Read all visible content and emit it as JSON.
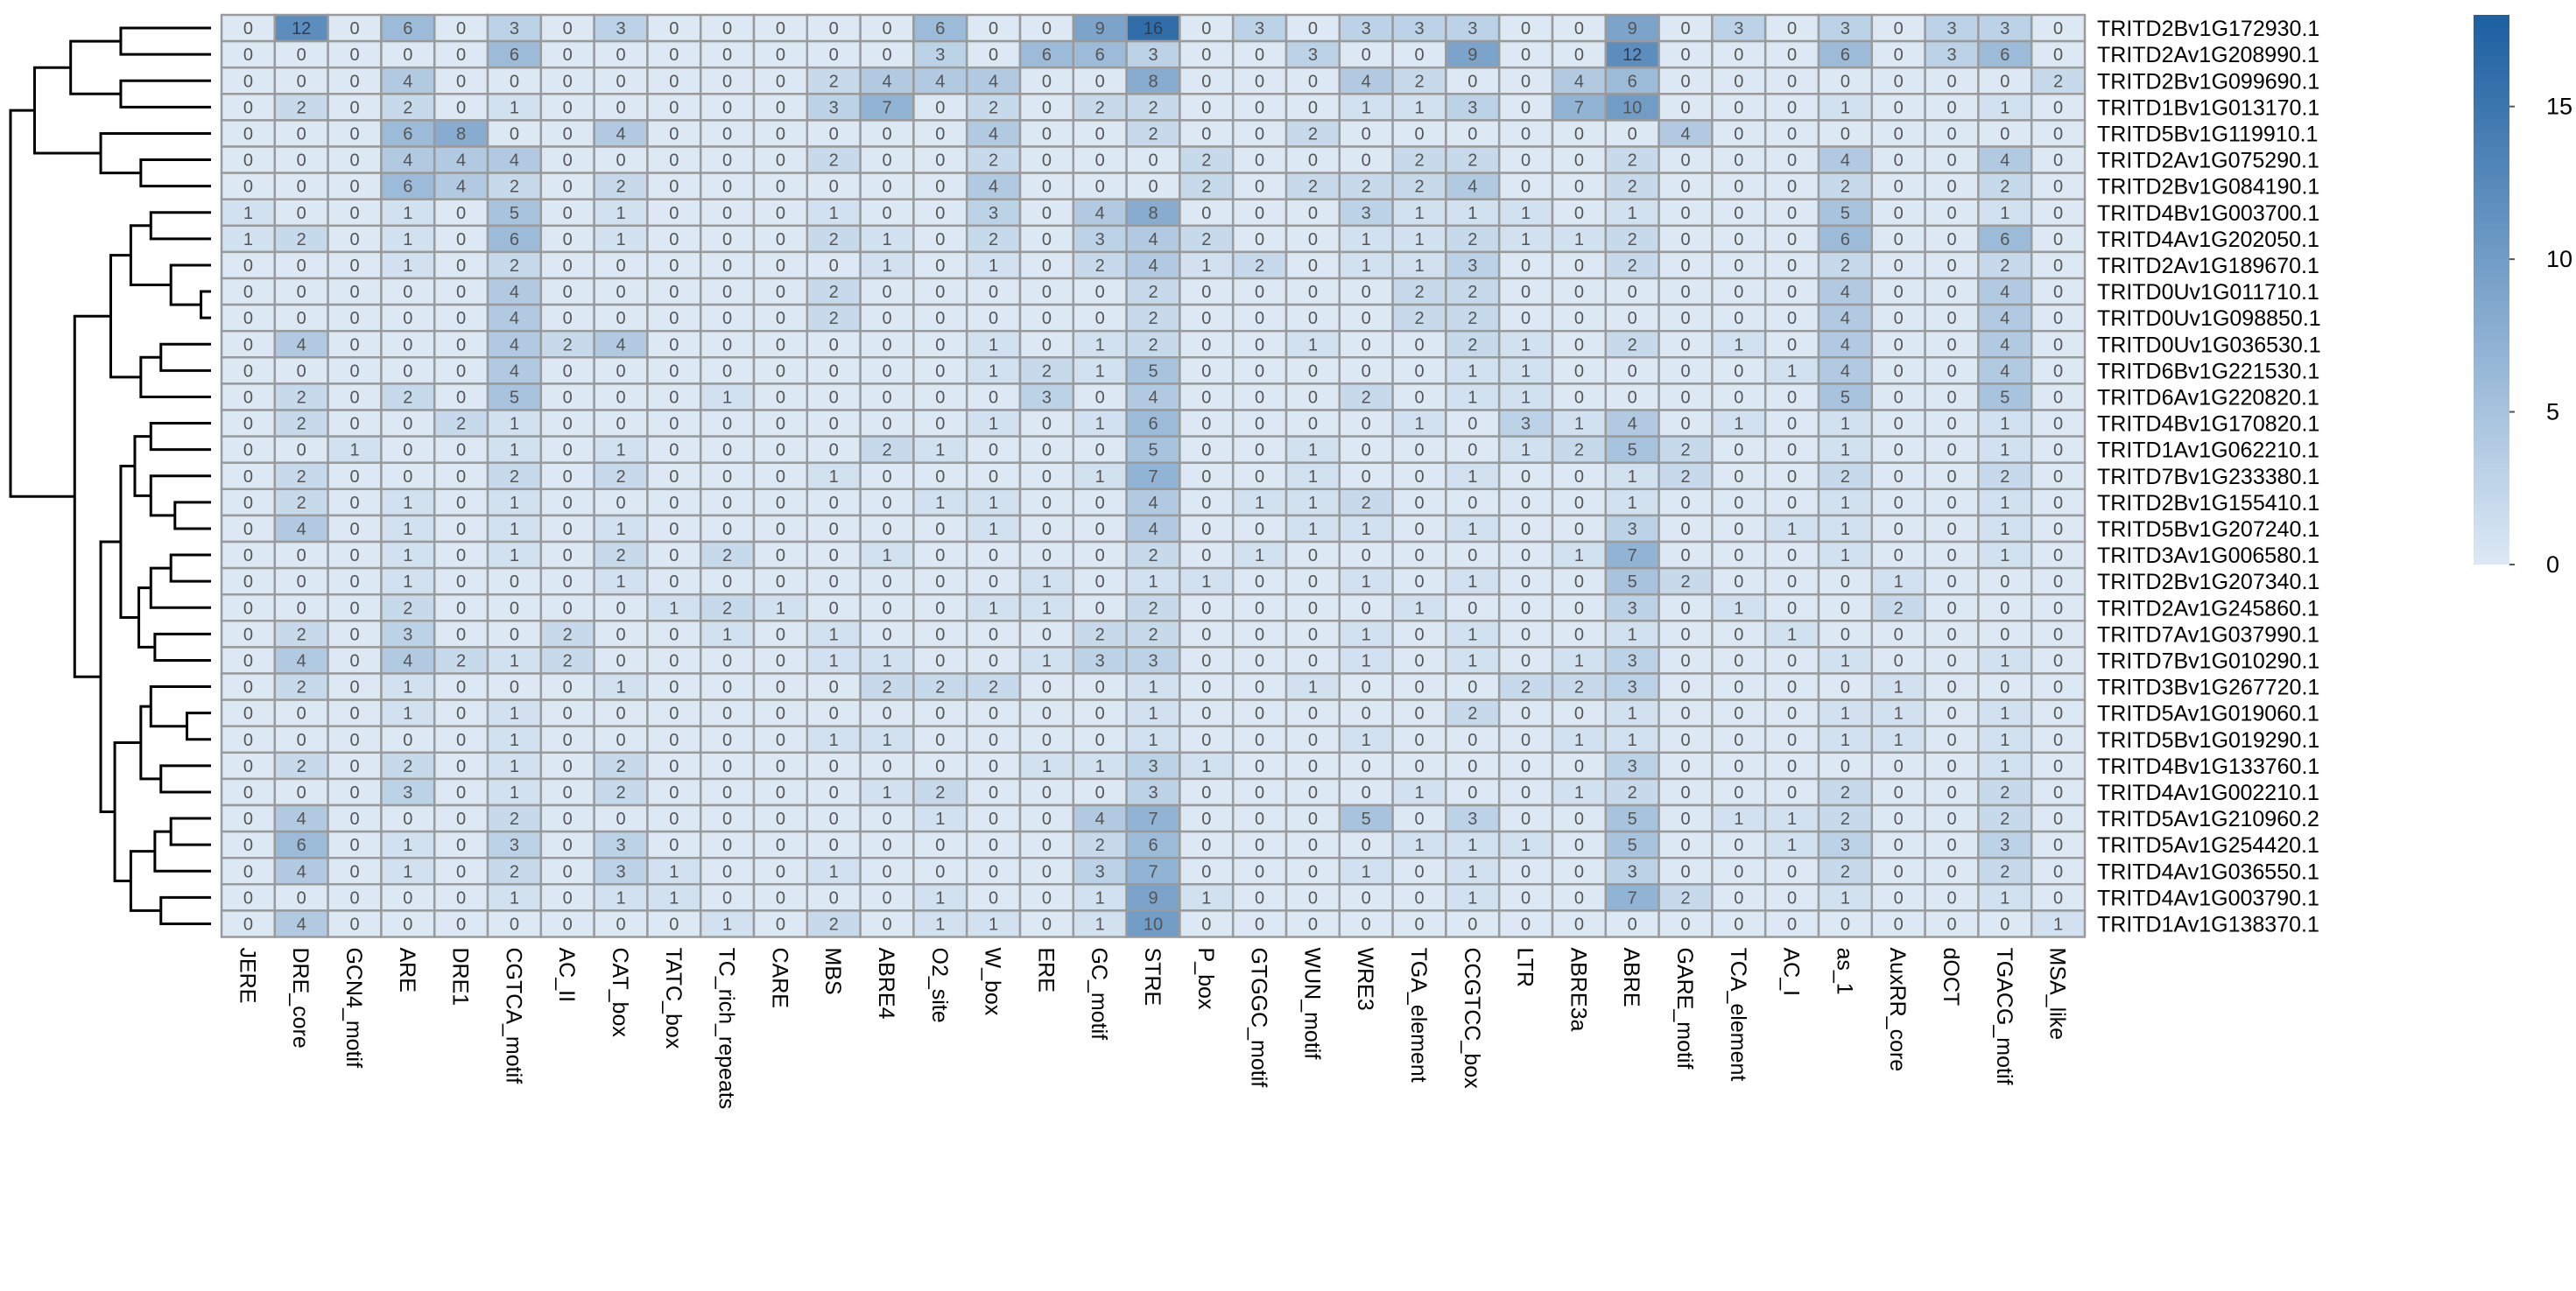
{
  "chart_data": {
    "type": "heatmap",
    "title": "",
    "xlabel": "",
    "ylabel": "",
    "columns": [
      "JERE",
      "DRE_core",
      "GCN4_motif",
      "ARE",
      "DRE1",
      "CGTCA_motif",
      "AC_II",
      "CAT_box",
      "TATC_box",
      "TC_rich_repeats",
      "CARE",
      "MBS",
      "ABRE4",
      "O2_site",
      "W_box",
      "ERE",
      "GC_motif",
      "STRE",
      "P_box",
      "GTGGC_motif",
      "WUN_motif",
      "WRE3",
      "TGA_element",
      "CCGTCC_box",
      "LTR",
      "ABRE3a",
      "ABRE",
      "GARE_motif",
      "TCA_element",
      "AC_I",
      "as_1",
      "AuxRR_core",
      "dOCT",
      "TGACG_motif",
      "MSA_like"
    ],
    "rows": [
      "TRITD2Bv1G172930.1",
      "TRITD2Av1G208990.1",
      "TRITD2Bv1G099690.1",
      "TRITD1Bv1G013170.1",
      "TRITD5Bv1G119910.1",
      "TRITD2Av1G075290.1",
      "TRITD2Bv1G084190.1",
      "TRITD4Bv1G003700.1",
      "TRITD4Av1G202050.1",
      "TRITD2Av1G189670.1",
      "TRITD0Uv1G011710.1",
      "TRITD0Uv1G098850.1",
      "TRITD0Uv1G036530.1",
      "TRITD6Bv1G221530.1",
      "TRITD6Av1G220820.1",
      "TRITD4Bv1G170820.1",
      "TRITD1Av1G062210.1",
      "TRITD7Bv1G233380.1",
      "TRITD2Bv1G155410.1",
      "TRITD5Bv1G207240.1",
      "TRITD3Av1G006580.1",
      "TRITD2Bv1G207340.1",
      "TRITD2Av1G245860.1",
      "TRITD7Av1G037990.1",
      "TRITD7Bv1G010290.1",
      "TRITD3Bv1G267720.1",
      "TRITD5Av1G019060.1",
      "TRITD5Bv1G019290.1",
      "TRITD4Bv1G133760.1",
      "TRITD4Av1G002210.1",
      "TRITD5Av1G210960.2",
      "TRITD5Av1G254420.1",
      "TRITD4Av1G036550.1",
      "TRITD4Av1G003790.1",
      "TRITD1Av1G138370.1"
    ],
    "values": [
      [
        0,
        12,
        0,
        6,
        0,
        3,
        0,
        3,
        0,
        0,
        0,
        0,
        0,
        6,
        0,
        0,
        9,
        16,
        0,
        3,
        0,
        3,
        3,
        3,
        0,
        0,
        9,
        0,
        3,
        0,
        3,
        0,
        3,
        3,
        0
      ],
      [
        0,
        0,
        0,
        0,
        0,
        6,
        0,
        0,
        0,
        0,
        0,
        0,
        0,
        3,
        0,
        6,
        6,
        3,
        0,
        0,
        3,
        0,
        0,
        9,
        0,
        0,
        12,
        0,
        0,
        0,
        6,
        0,
        3,
        6,
        0
      ],
      [
        0,
        0,
        0,
        4,
        0,
        0,
        0,
        0,
        0,
        0,
        0,
        2,
        4,
        4,
        4,
        0,
        0,
        8,
        0,
        0,
        0,
        4,
        2,
        0,
        0,
        4,
        6,
        0,
        0,
        0,
        0,
        0,
        0,
        0,
        2
      ],
      [
        0,
        2,
        0,
        2,
        0,
        1,
        0,
        0,
        0,
        0,
        0,
        3,
        7,
        0,
        2,
        0,
        2,
        2,
        0,
        0,
        0,
        1,
        1,
        3,
        0,
        7,
        10,
        0,
        0,
        0,
        1,
        0,
        0,
        1,
        0
      ],
      [
        0,
        0,
        0,
        6,
        8,
        0,
        0,
        4,
        0,
        0,
        0,
        0,
        0,
        0,
        4,
        0,
        0,
        2,
        0,
        0,
        2,
        0,
        0,
        0,
        0,
        0,
        0,
        4,
        0,
        0,
        0,
        0,
        0,
        0,
        0
      ],
      [
        0,
        0,
        0,
        4,
        4,
        4,
        0,
        0,
        0,
        0,
        0,
        2,
        0,
        0,
        2,
        0,
        0,
        0,
        2,
        0,
        0,
        0,
        2,
        2,
        0,
        0,
        2,
        0,
        0,
        0,
        4,
        0,
        0,
        4,
        0
      ],
      [
        0,
        0,
        0,
        6,
        4,
        2,
        0,
        2,
        0,
        0,
        0,
        0,
        0,
        0,
        4,
        0,
        0,
        0,
        2,
        0,
        2,
        2,
        2,
        4,
        0,
        0,
        2,
        0,
        0,
        0,
        2,
        0,
        0,
        2,
        0
      ],
      [
        1,
        0,
        0,
        1,
        0,
        5,
        0,
        1,
        0,
        0,
        0,
        1,
        0,
        0,
        3,
        0,
        4,
        8,
        0,
        0,
        0,
        3,
        1,
        1,
        1,
        0,
        1,
        0,
        0,
        0,
        5,
        0,
        0,
        1,
        0
      ],
      [
        1,
        2,
        0,
        1,
        0,
        6,
        0,
        1,
        0,
        0,
        0,
        2,
        1,
        0,
        2,
        0,
        3,
        4,
        2,
        0,
        0,
        1,
        1,
        2,
        1,
        1,
        2,
        0,
        0,
        0,
        6,
        0,
        0,
        6,
        0
      ],
      [
        0,
        0,
        0,
        1,
        0,
        2,
        0,
        0,
        0,
        0,
        0,
        0,
        1,
        0,
        1,
        0,
        2,
        4,
        1,
        2,
        0,
        1,
        1,
        3,
        0,
        0,
        2,
        0,
        0,
        0,
        2,
        0,
        0,
        2,
        0
      ],
      [
        0,
        0,
        0,
        0,
        0,
        4,
        0,
        0,
        0,
        0,
        0,
        2,
        0,
        0,
        0,
        0,
        0,
        2,
        0,
        0,
        0,
        0,
        2,
        2,
        0,
        0,
        0,
        0,
        0,
        0,
        4,
        0,
        0,
        4,
        0
      ],
      [
        0,
        0,
        0,
        0,
        0,
        4,
        0,
        0,
        0,
        0,
        0,
        2,
        0,
        0,
        0,
        0,
        0,
        2,
        0,
        0,
        0,
        0,
        2,
        2,
        0,
        0,
        0,
        0,
        0,
        0,
        4,
        0,
        0,
        4,
        0
      ],
      [
        0,
        4,
        0,
        0,
        0,
        4,
        2,
        4,
        0,
        0,
        0,
        0,
        0,
        0,
        1,
        0,
        1,
        2,
        0,
        0,
        1,
        0,
        0,
        2,
        1,
        0,
        2,
        0,
        1,
        0,
        4,
        0,
        0,
        4,
        0
      ],
      [
        0,
        0,
        0,
        0,
        0,
        4,
        0,
        0,
        0,
        0,
        0,
        0,
        0,
        0,
        1,
        2,
        1,
        5,
        0,
        0,
        0,
        0,
        0,
        1,
        1,
        0,
        0,
        0,
        0,
        1,
        4,
        0,
        0,
        4,
        0
      ],
      [
        0,
        2,
        0,
        2,
        0,
        5,
        0,
        0,
        0,
        1,
        0,
        0,
        0,
        0,
        0,
        3,
        0,
        4,
        0,
        0,
        0,
        2,
        0,
        1,
        1,
        0,
        0,
        0,
        0,
        0,
        5,
        0,
        0,
        5,
        0
      ],
      [
        0,
        2,
        0,
        0,
        2,
        1,
        0,
        0,
        0,
        0,
        0,
        0,
        0,
        0,
        1,
        0,
        1,
        6,
        0,
        0,
        0,
        0,
        1,
        0,
        3,
        1,
        4,
        0,
        1,
        0,
        1,
        0,
        0,
        1,
        0
      ],
      [
        0,
        0,
        1,
        0,
        0,
        1,
        0,
        1,
        0,
        0,
        0,
        0,
        2,
        1,
        0,
        0,
        0,
        5,
        0,
        0,
        1,
        0,
        0,
        0,
        1,
        2,
        5,
        2,
        0,
        0,
        1,
        0,
        0,
        1,
        0
      ],
      [
        0,
        2,
        0,
        0,
        0,
        2,
        0,
        2,
        0,
        0,
        0,
        1,
        0,
        0,
        0,
        0,
        1,
        7,
        0,
        0,
        1,
        0,
        0,
        1,
        0,
        0,
        1,
        2,
        0,
        0,
        2,
        0,
        0,
        2,
        0
      ],
      [
        0,
        2,
        0,
        1,
        0,
        1,
        0,
        0,
        0,
        0,
        0,
        0,
        0,
        1,
        1,
        0,
        0,
        4,
        0,
        1,
        1,
        2,
        0,
        0,
        0,
        0,
        1,
        0,
        0,
        0,
        1,
        0,
        0,
        1,
        0
      ],
      [
        0,
        4,
        0,
        1,
        0,
        1,
        0,
        1,
        0,
        0,
        0,
        0,
        0,
        0,
        1,
        0,
        0,
        4,
        0,
        0,
        1,
        1,
        0,
        1,
        0,
        0,
        3,
        0,
        0,
        1,
        1,
        0,
        0,
        1,
        0
      ],
      [
        0,
        0,
        0,
        1,
        0,
        1,
        0,
        2,
        0,
        2,
        0,
        0,
        1,
        0,
        0,
        0,
        0,
        2,
        0,
        1,
        0,
        0,
        0,
        0,
        0,
        1,
        7,
        0,
        0,
        0,
        1,
        0,
        0,
        1,
        0
      ],
      [
        0,
        0,
        0,
        1,
        0,
        0,
        0,
        1,
        0,
        0,
        0,
        0,
        0,
        0,
        0,
        1,
        0,
        1,
        1,
        0,
        0,
        1,
        0,
        1,
        0,
        0,
        5,
        2,
        0,
        0,
        0,
        1,
        0,
        0,
        0
      ],
      [
        0,
        0,
        0,
        2,
        0,
        0,
        0,
        0,
        1,
        2,
        1,
        0,
        0,
        0,
        1,
        1,
        0,
        2,
        0,
        0,
        0,
        0,
        1,
        0,
        0,
        0,
        3,
        0,
        1,
        0,
        0,
        2,
        0,
        0,
        0
      ],
      [
        0,
        2,
        0,
        3,
        0,
        0,
        2,
        0,
        0,
        1,
        0,
        1,
        0,
        0,
        0,
        0,
        2,
        2,
        0,
        0,
        0,
        1,
        0,
        1,
        0,
        0,
        1,
        0,
        0,
        1,
        0,
        0,
        0,
        0,
        0
      ],
      [
        0,
        4,
        0,
        4,
        2,
        1,
        2,
        0,
        0,
        0,
        0,
        1,
        1,
        0,
        0,
        1,
        3,
        3,
        0,
        0,
        0,
        1,
        0,
        1,
        0,
        1,
        3,
        0,
        0,
        0,
        1,
        0,
        0,
        1,
        0
      ],
      [
        0,
        2,
        0,
        1,
        0,
        0,
        0,
        1,
        0,
        0,
        0,
        0,
        2,
        2,
        2,
        0,
        0,
        1,
        0,
        0,
        1,
        0,
        0,
        0,
        2,
        2,
        3,
        0,
        0,
        0,
        0,
        1,
        0,
        0,
        0
      ],
      [
        0,
        0,
        0,
        1,
        0,
        1,
        0,
        0,
        0,
        0,
        0,
        0,
        0,
        0,
        0,
        0,
        0,
        1,
        0,
        0,
        0,
        0,
        0,
        2,
        0,
        0,
        1,
        0,
        0,
        0,
        1,
        1,
        0,
        1,
        0
      ],
      [
        0,
        0,
        0,
        0,
        0,
        1,
        0,
        0,
        0,
        0,
        0,
        1,
        1,
        0,
        0,
        0,
        0,
        1,
        0,
        0,
        0,
        1,
        0,
        0,
        0,
        1,
        1,
        0,
        0,
        0,
        1,
        1,
        0,
        1,
        0
      ],
      [
        0,
        2,
        0,
        2,
        0,
        1,
        0,
        2,
        0,
        0,
        0,
        0,
        0,
        0,
        0,
        1,
        1,
        3,
        1,
        0,
        0,
        0,
        0,
        0,
        0,
        0,
        3,
        0,
        0,
        0,
        0,
        0,
        0,
        1,
        0
      ],
      [
        0,
        0,
        0,
        3,
        0,
        1,
        0,
        2,
        0,
        0,
        0,
        0,
        1,
        2,
        0,
        0,
        0,
        3,
        0,
        0,
        0,
        0,
        1,
        0,
        0,
        1,
        2,
        0,
        0,
        0,
        2,
        0,
        0,
        2,
        0
      ],
      [
        0,
        4,
        0,
        0,
        0,
        2,
        0,
        0,
        0,
        0,
        0,
        0,
        0,
        1,
        0,
        0,
        4,
        7,
        0,
        0,
        0,
        5,
        0,
        3,
        0,
        0,
        5,
        0,
        1,
        1,
        2,
        0,
        0,
        2,
        0
      ],
      [
        0,
        6,
        0,
        1,
        0,
        3,
        0,
        3,
        0,
        0,
        0,
        0,
        0,
        0,
        0,
        0,
        2,
        6,
        0,
        0,
        0,
        0,
        1,
        1,
        1,
        0,
        5,
        0,
        0,
        1,
        3,
        0,
        0,
        3,
        0
      ],
      [
        0,
        4,
        0,
        1,
        0,
        2,
        0,
        3,
        1,
        0,
        0,
        1,
        0,
        0,
        0,
        0,
        3,
        7,
        0,
        0,
        0,
        1,
        0,
        1,
        0,
        0,
        3,
        0,
        0,
        0,
        2,
        0,
        0,
        2,
        0
      ],
      [
        0,
        0,
        0,
        0,
        0,
        1,
        0,
        1,
        1,
        0,
        0,
        0,
        0,
        1,
        0,
        0,
        1,
        9,
        1,
        0,
        0,
        0,
        0,
        1,
        0,
        0,
        7,
        2,
        0,
        0,
        1,
        0,
        0,
        1,
        0
      ],
      [
        0,
        4,
        0,
        0,
        0,
        0,
        0,
        0,
        0,
        1,
        0,
        2,
        0,
        1,
        1,
        0,
        1,
        10,
        0,
        0,
        0,
        0,
        0,
        0,
        0,
        0,
        0,
        0,
        0,
        0,
        0,
        0,
        0,
        0,
        1
      ]
    ],
    "colorbar": {
      "min": 0,
      "max": 18,
      "ticks": [
        "0",
        "5",
        "10",
        "15"
      ],
      "low_color": "#dce9f5",
      "high_color": "#1c5fa0"
    },
    "grid": true,
    "legend_placement": "right",
    "dendrogram": "left"
  }
}
